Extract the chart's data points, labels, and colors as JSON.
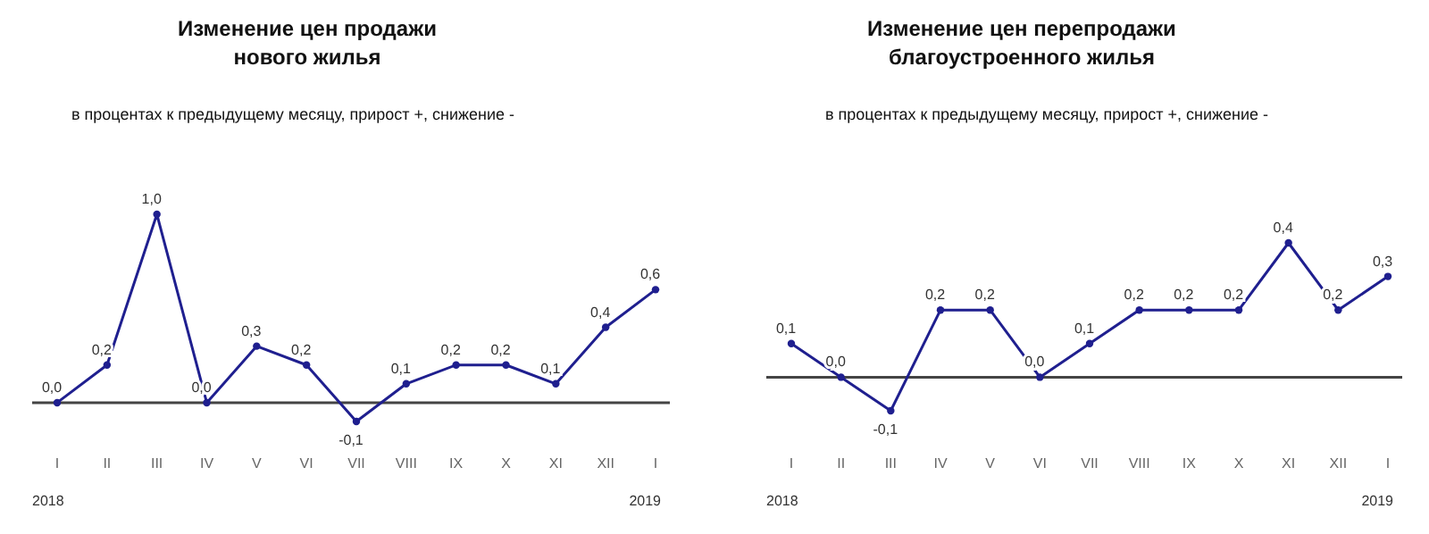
{
  "chart_data": [
    {
      "type": "line",
      "title": "Изменение цен продажи\nнового жилья",
      "subtitle": "в процентах к предыдущему месяцу, прирост +, снижение -",
      "categories": [
        "I",
        "II",
        "III",
        "IV",
        "V",
        "VI",
        "VII",
        "VIII",
        "IX",
        "X",
        "XI",
        "XII",
        "I"
      ],
      "series": [
        {
          "color": "#1f1f8f",
          "values": [
            0.0,
            0.2,
            1.0,
            0.0,
            0.3,
            0.2,
            -0.1,
            0.1,
            0.2,
            0.2,
            0.1,
            0.4,
            0.6
          ],
          "value_labels": [
            "0,0",
            "0,2",
            "1,0",
            "0,0",
            "0,3",
            "0,2",
            "-0,1",
            "0,1",
            "0,2",
            "0,2",
            "0,1",
            "0,4",
            "0,6"
          ]
        }
      ],
      "annotations": [
        "2018",
        "2019"
      ],
      "marker": "circle"
    },
    {
      "type": "line",
      "title": "Изменение цен перепродажи\nблагоустроенного жилья",
      "subtitle": "в процентах к предыдущему месяцу, прирост +, снижение -",
      "categories": [
        "I",
        "II",
        "III",
        "IV",
        "V",
        "VI",
        "VII",
        "VIII",
        "IX",
        "X",
        "XI",
        "XII",
        "I"
      ],
      "series": [
        {
          "color": "#1f1f8f",
          "values": [
            0.1,
            0.0,
            -0.1,
            0.2,
            0.2,
            0.0,
            0.1,
            0.2,
            0.2,
            0.2,
            0.4,
            0.2,
            0.3
          ],
          "value_labels": [
            "0,1",
            "0,0",
            "-0,1",
            "0,2",
            "0,2",
            "0,0",
            "0,1",
            "0,2",
            "0,2",
            "0,2",
            "0,4",
            "0,2",
            "0,3"
          ]
        }
      ],
      "annotations": [
        "2018",
        "2019"
      ],
      "marker": "circle"
    }
  ]
}
